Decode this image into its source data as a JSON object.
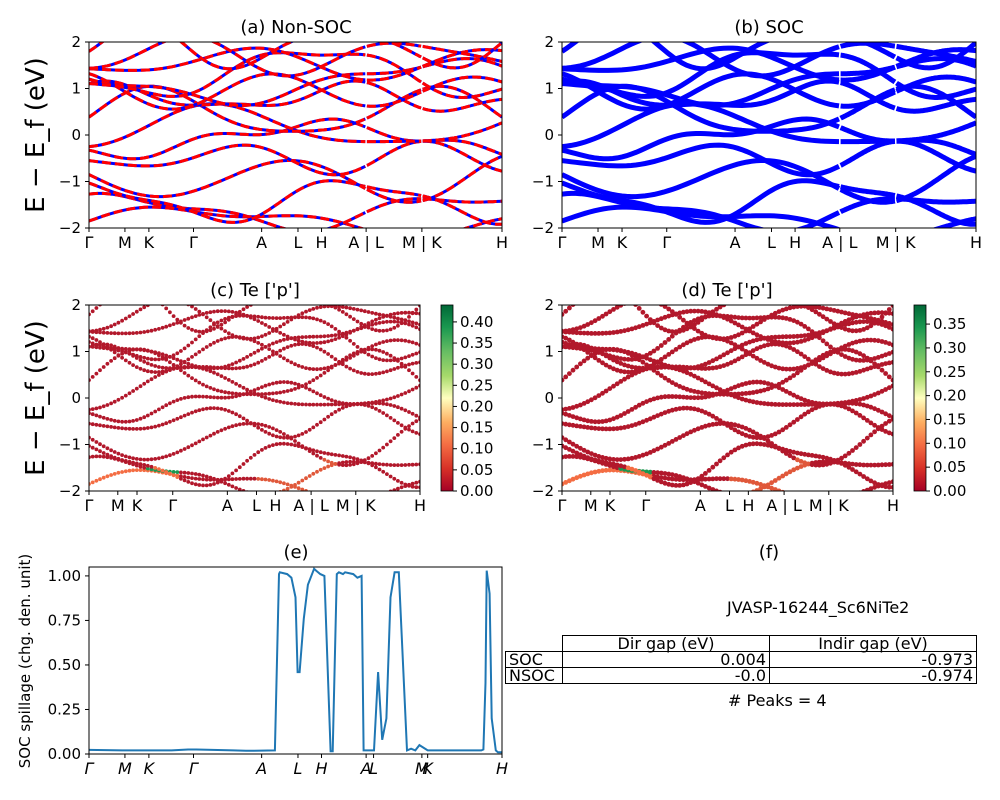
{
  "chart_data": [
    {
      "id": "a",
      "type": "line",
      "title": "(a) Non-SOC",
      "ylabel": "E − E_f (eV)",
      "ylim": [
        -2,
        2
      ],
      "yticks": [
        "2",
        "1",
        "0",
        "−1",
        "−2"
      ],
      "ytick_values": [
        2,
        1,
        0,
        -1,
        -2
      ],
      "kpath_labels": [
        "Γ",
        "M",
        "K",
        "Γ",
        "A",
        "L",
        "H",
        "A | L",
        "M | K",
        "H"
      ],
      "kpath_positions": [
        0,
        0.087,
        0.145,
        0.253,
        0.418,
        0.506,
        0.563,
        0.671,
        0.806,
        1.0
      ],
      "series_style": "red/blue dashed bands (spin up / down)",
      "colors": {
        "up": "#ff0000",
        "down": "#0000ff"
      }
    },
    {
      "id": "b",
      "type": "line",
      "title": "(b) SOC",
      "ylim": [
        -2,
        2
      ],
      "yticks": [
        "2",
        "1",
        "0",
        "−1",
        "−2"
      ],
      "ytick_values": [
        2,
        1,
        0,
        -1,
        -2
      ],
      "kpath_labels": [
        "Γ",
        "M",
        "K",
        "Γ",
        "A",
        "L",
        "H",
        "A | L",
        "M | K",
        "H"
      ],
      "kpath_positions": [
        0,
        0.087,
        0.145,
        0.253,
        0.418,
        0.506,
        0.563,
        0.671,
        0.806,
        1.0
      ],
      "colors": {
        "band": "#0000ff"
      }
    },
    {
      "id": "c",
      "type": "scatter",
      "title": "(c)  Te ['p']",
      "ylabel": "E − E_f (eV)",
      "ylim": [
        -2,
        2
      ],
      "yticks": [
        "2",
        "1",
        "0",
        "−1",
        "−2"
      ],
      "ytick_values": [
        2,
        1,
        0,
        -1,
        -2
      ],
      "kpath_labels": [
        "Γ",
        "M",
        "K",
        "Γ",
        "A",
        "L",
        "H",
        "A | L",
        "M | K",
        "H"
      ],
      "kpath_positions": [
        0,
        0.087,
        0.145,
        0.253,
        0.418,
        0.506,
        0.563,
        0.671,
        0.806,
        1.0
      ],
      "colorbar": {
        "min": 0,
        "max": 0.44,
        "ticks": [
          "0.00",
          "0.05",
          "0.10",
          "0.15",
          "0.20",
          "0.25",
          "0.30",
          "0.35",
          "0.40"
        ],
        "tick_values": [
          0,
          0.05,
          0.1,
          0.15,
          0.2,
          0.25,
          0.3,
          0.35,
          0.4
        ],
        "colormap": "RdYlGn"
      }
    },
    {
      "id": "d",
      "type": "scatter",
      "title": "(d) Te ['p']",
      "ylim": [
        -2,
        2
      ],
      "yticks": [
        "2",
        "1",
        "0",
        "−1",
        "−2"
      ],
      "ytick_values": [
        2,
        1,
        0,
        -1,
        -2
      ],
      "kpath_labels": [
        "Γ",
        "M",
        "K",
        "Γ",
        "A",
        "L",
        "H",
        "A | L",
        "M | K",
        "H"
      ],
      "kpath_positions": [
        0,
        0.087,
        0.145,
        0.253,
        0.418,
        0.506,
        0.563,
        0.671,
        0.806,
        1.0
      ],
      "colorbar": {
        "min": 0,
        "max": 0.39,
        "ticks": [
          "0.00",
          "0.05",
          "0.10",
          "0.15",
          "0.20",
          "0.25",
          "0.30",
          "0.35"
        ],
        "tick_values": [
          0,
          0.05,
          0.1,
          0.15,
          0.2,
          0.25,
          0.3,
          0.35
        ],
        "colormap": "RdYlGn"
      }
    },
    {
      "id": "e",
      "type": "line",
      "title": "(e)",
      "ylabel": "SOC spillage (chg. den. unit)",
      "ylim": [
        0,
        1.05
      ],
      "yticks": [
        "0.00",
        "0.25",
        "0.50",
        "0.75",
        "1.00"
      ],
      "ytick_values": [
        0,
        0.25,
        0.5,
        0.75,
        1.0
      ],
      "xlim": [
        0,
        1
      ],
      "kpath_labels": [
        "Γ",
        "M",
        "K",
        "Γ",
        "A",
        "L",
        "H",
        "A",
        "L",
        "M",
        "K",
        "H"
      ],
      "kpath_positions": [
        0,
        0.087,
        0.145,
        0.253,
        0.418,
        0.506,
        0.563,
        0.671,
        0.689,
        0.806,
        0.82,
        1.0
      ],
      "x": [
        0,
        0.08,
        0.2,
        0.24,
        0.26,
        0.35,
        0.38,
        0.4,
        0.45,
        0.46,
        0.462,
        0.48,
        0.49,
        0.5,
        0.505,
        0.51,
        0.52,
        0.53,
        0.545,
        0.55,
        0.56,
        0.57,
        0.585,
        0.59,
        0.6,
        0.605,
        0.615,
        0.62,
        0.64,
        0.65,
        0.66,
        0.665,
        0.68,
        0.685,
        0.69,
        0.7,
        0.71,
        0.72,
        0.73,
        0.74,
        0.75,
        0.77,
        0.78,
        0.79,
        0.8,
        0.82,
        0.85,
        0.9,
        0.95,
        0.955,
        0.96,
        0.963,
        0.97,
        0.975,
        0.985,
        0.99,
        1.0
      ],
      "y": [
        0.023,
        0.02,
        0.02,
        0.025,
        0.025,
        0.02,
        0.018,
        0.018,
        0.02,
        1.01,
        1.02,
        1.01,
        0.99,
        0.88,
        0.46,
        0.46,
        0.76,
        0.95,
        1.04,
        1.03,
        1.01,
        1.0,
        0.015,
        0.015,
        1.01,
        1.02,
        1.01,
        1.02,
        1.01,
        0.99,
        1.0,
        0.02,
        0.02,
        0.02,
        0.02,
        0.46,
        0.08,
        0.2,
        0.88,
        1.02,
        1.02,
        0.02,
        0.03,
        0.02,
        0.05,
        0.02,
        0.02,
        0.02,
        0.02,
        0.025,
        0.4,
        1.03,
        0.9,
        0.2,
        0.02,
        0.01,
        0.01
      ],
      "color": "#1f77b4"
    }
  ],
  "panel_f": {
    "title": "(f)",
    "material": "JVASP-16244_Sc6NiTe2",
    "table": {
      "headers": [
        "",
        "Dir gap (eV)",
        "Indir gap (eV)"
      ],
      "rows": [
        {
          "label": "SOC",
          "dir": "0.004",
          "indir": "-0.973"
        },
        {
          "label": "NSOC",
          "dir": "-0.0",
          "indir": "-0.974"
        }
      ]
    },
    "peaks": "# Peaks = 4"
  }
}
